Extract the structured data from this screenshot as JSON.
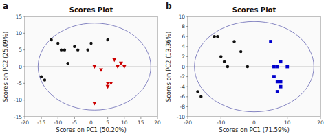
{
  "chart_data": [
    {
      "type": "scatter",
      "title": "Scores Plot",
      "annotations": [
        "a"
      ],
      "xlabel": "Scores on PC1 (50.20%)",
      "ylabel": "Scores on PC2 (25.09%)",
      "xlim": [
        -20,
        20
      ],
      "ylim": [
        -15,
        15
      ],
      "xticks": [
        -20,
        -15,
        -10,
        -5,
        0,
        5,
        10,
        15,
        20
      ],
      "yticks": [
        -15,
        -10,
        -5,
        0,
        5,
        10,
        15
      ],
      "grid": false,
      "ellipse": {
        "cx": 1,
        "cy": 0,
        "rx": 17,
        "ry": 13,
        "color": "#7777bb"
      },
      "reference_lines": {
        "x": 0,
        "y": 0,
        "color": "#aaaaaa"
      },
      "series": [
        {
          "color": "#111111",
          "marker": "circle",
          "x": [
            -15,
            -14,
            -12,
            -10,
            -9,
            -8,
            -7,
            -5,
            -4,
            -1,
            0,
            5
          ],
          "values": [
            -3,
            -4,
            8,
            7,
            5,
            5,
            1,
            6,
            5,
            5,
            7,
            8
          ]
        },
        {
          "color": "#cc0000",
          "marker": "triangle-down",
          "x": [
            1,
            3,
            5,
            5,
            6,
            7,
            8,
            9,
            10,
            1
          ],
          "values": [
            0,
            -1,
            -5,
            -6,
            -5,
            2,
            0,
            1,
            0,
            -11
          ]
        }
      ]
    },
    {
      "type": "scatter",
      "title": "Scores Plot",
      "annotations": [
        "b"
      ],
      "xlabel": "Scores on PC1 (71.59%)",
      "ylabel": "Scores on PC2 (13.36%)",
      "xlim": [
        -20,
        20
      ],
      "ylim": [
        -10,
        10
      ],
      "xticks": [
        -20,
        -10,
        0,
        10,
        20
      ],
      "yticks": [
        -10,
        -8,
        -6,
        -4,
        -2,
        0,
        2,
        4,
        6,
        8,
        10
      ],
      "grid": false,
      "ellipse": {
        "cx": 0,
        "cy": 0,
        "rx": 18,
        "ry": 9,
        "color": "#7777bb"
      },
      "reference_lines": {
        "x": 0,
        "y": 0,
        "color": "#aaaaaa"
      },
      "series": [
        {
          "color": "#111111",
          "marker": "circle",
          "x": [
            -17,
            -16,
            -12,
            -11,
            -10,
            -9,
            -8,
            -6,
            -4,
            -2
          ],
          "values": [
            -5,
            -6,
            6,
            6,
            2,
            1,
            0,
            5,
            3,
            0
          ]
        },
        {
          "color": "#0000cc",
          "marker": "square",
          "x": [
            5,
            6,
            7,
            8,
            10,
            6,
            7,
            8,
            7,
            8
          ],
          "values": [
            5,
            0,
            0,
            1,
            0,
            -2,
            -3,
            -3,
            -5,
            -4
          ]
        }
      ]
    }
  ]
}
